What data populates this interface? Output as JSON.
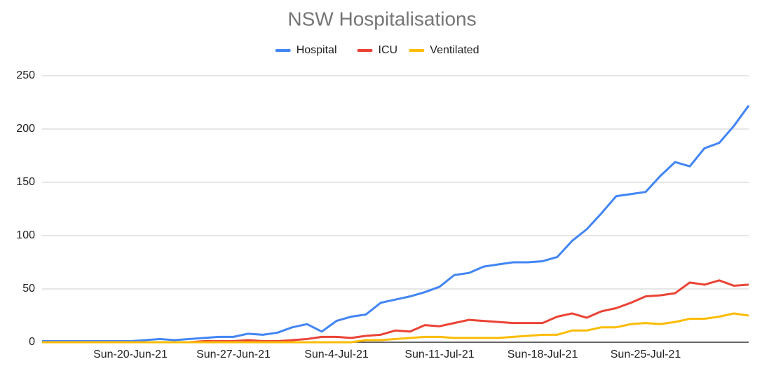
{
  "chart_data": {
    "type": "line",
    "title": "NSW Hospitalisations",
    "categories": [
      null,
      null,
      null,
      null,
      null,
      null,
      "Sun-20-Jun-21",
      null,
      null,
      null,
      null,
      null,
      null,
      "Sun-27-Jun-21",
      null,
      null,
      null,
      null,
      null,
      null,
      "Sun-4-Jul-21",
      null,
      null,
      null,
      null,
      null,
      null,
      "Sun-11-Jul-21",
      null,
      null,
      null,
      null,
      null,
      null,
      "Sun-18-Jul-21",
      null,
      null,
      null,
      null,
      null,
      null,
      "Sun-25-Jul-21",
      null,
      null,
      null,
      null,
      null,
      null,
      null
    ],
    "series": [
      {
        "name": "Hospital",
        "color": "#4285f4",
        "values": [
          1,
          1,
          1,
          1,
          1,
          1,
          1,
          2,
          3,
          2,
          3,
          4,
          5,
          5,
          8,
          7,
          9,
          14,
          17,
          10,
          20,
          24,
          26,
          37,
          40,
          43,
          47,
          52,
          63,
          65,
          71,
          73,
          75,
          75,
          76,
          80,
          95,
          106,
          121,
          137,
          139,
          141,
          156,
          169,
          165,
          182,
          187,
          203,
          222
        ]
      },
      {
        "name": "ICU",
        "color": "#ea4335",
        "values": [
          0,
          0,
          0,
          0,
          0,
          0,
          0,
          0,
          0,
          0,
          0,
          1,
          1,
          1,
          2,
          1,
          1,
          2,
          3,
          5,
          5,
          4,
          6,
          7,
          11,
          10,
          16,
          15,
          18,
          21,
          20,
          19,
          18,
          18,
          18,
          24,
          27,
          23,
          29,
          32,
          37,
          43,
          44,
          46,
          56,
          54,
          58,
          53,
          54
        ]
      },
      {
        "name": "Ventilated",
        "color": "#fbbc04",
        "values": [
          0,
          0,
          0,
          0,
          0,
          0,
          0,
          0,
          0,
          0,
          0,
          0,
          0,
          0,
          0,
          0,
          0,
          0,
          0,
          0,
          0,
          0,
          2,
          2,
          3,
          4,
          5,
          5,
          4,
          4,
          4,
          4,
          5,
          6,
          7,
          7,
          11,
          11,
          14,
          14,
          17,
          18,
          17,
          19,
          22,
          22,
          24,
          27,
          25
        ]
      }
    ],
    "ylim": [
      0,
      250
    ],
    "yticks": [
      0,
      50,
      100,
      150,
      200,
      250
    ],
    "grid": true,
    "legend": "top"
  }
}
